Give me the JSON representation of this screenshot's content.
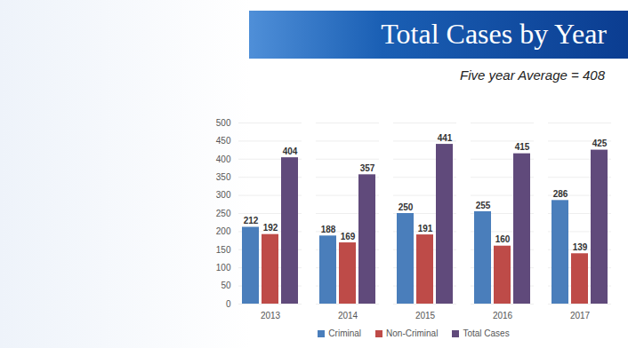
{
  "chart_data": {
    "type": "bar",
    "title": "Total Cases by Year",
    "subtitle": "Five year Average = 408",
    "categories": [
      "2013",
      "2014",
      "2015",
      "2016",
      "2017"
    ],
    "series": [
      {
        "name": "Criminal",
        "color": "#4a7ebb",
        "values": [
          212,
          188,
          250,
          255,
          286
        ]
      },
      {
        "name": "Non-Criminal",
        "color": "#be4b48",
        "values": [
          192,
          169,
          191,
          160,
          139
        ]
      },
      {
        "name": "Total Cases",
        "color": "#604a7b",
        "values": [
          404,
          357,
          441,
          415,
          425
        ]
      }
    ],
    "ylim": [
      0,
      500
    ],
    "yticks": [
      0,
      50,
      100,
      150,
      200,
      250,
      300,
      350,
      400,
      450,
      500
    ],
    "grid": true,
    "legend": "bottom",
    "data_labels": true
  }
}
